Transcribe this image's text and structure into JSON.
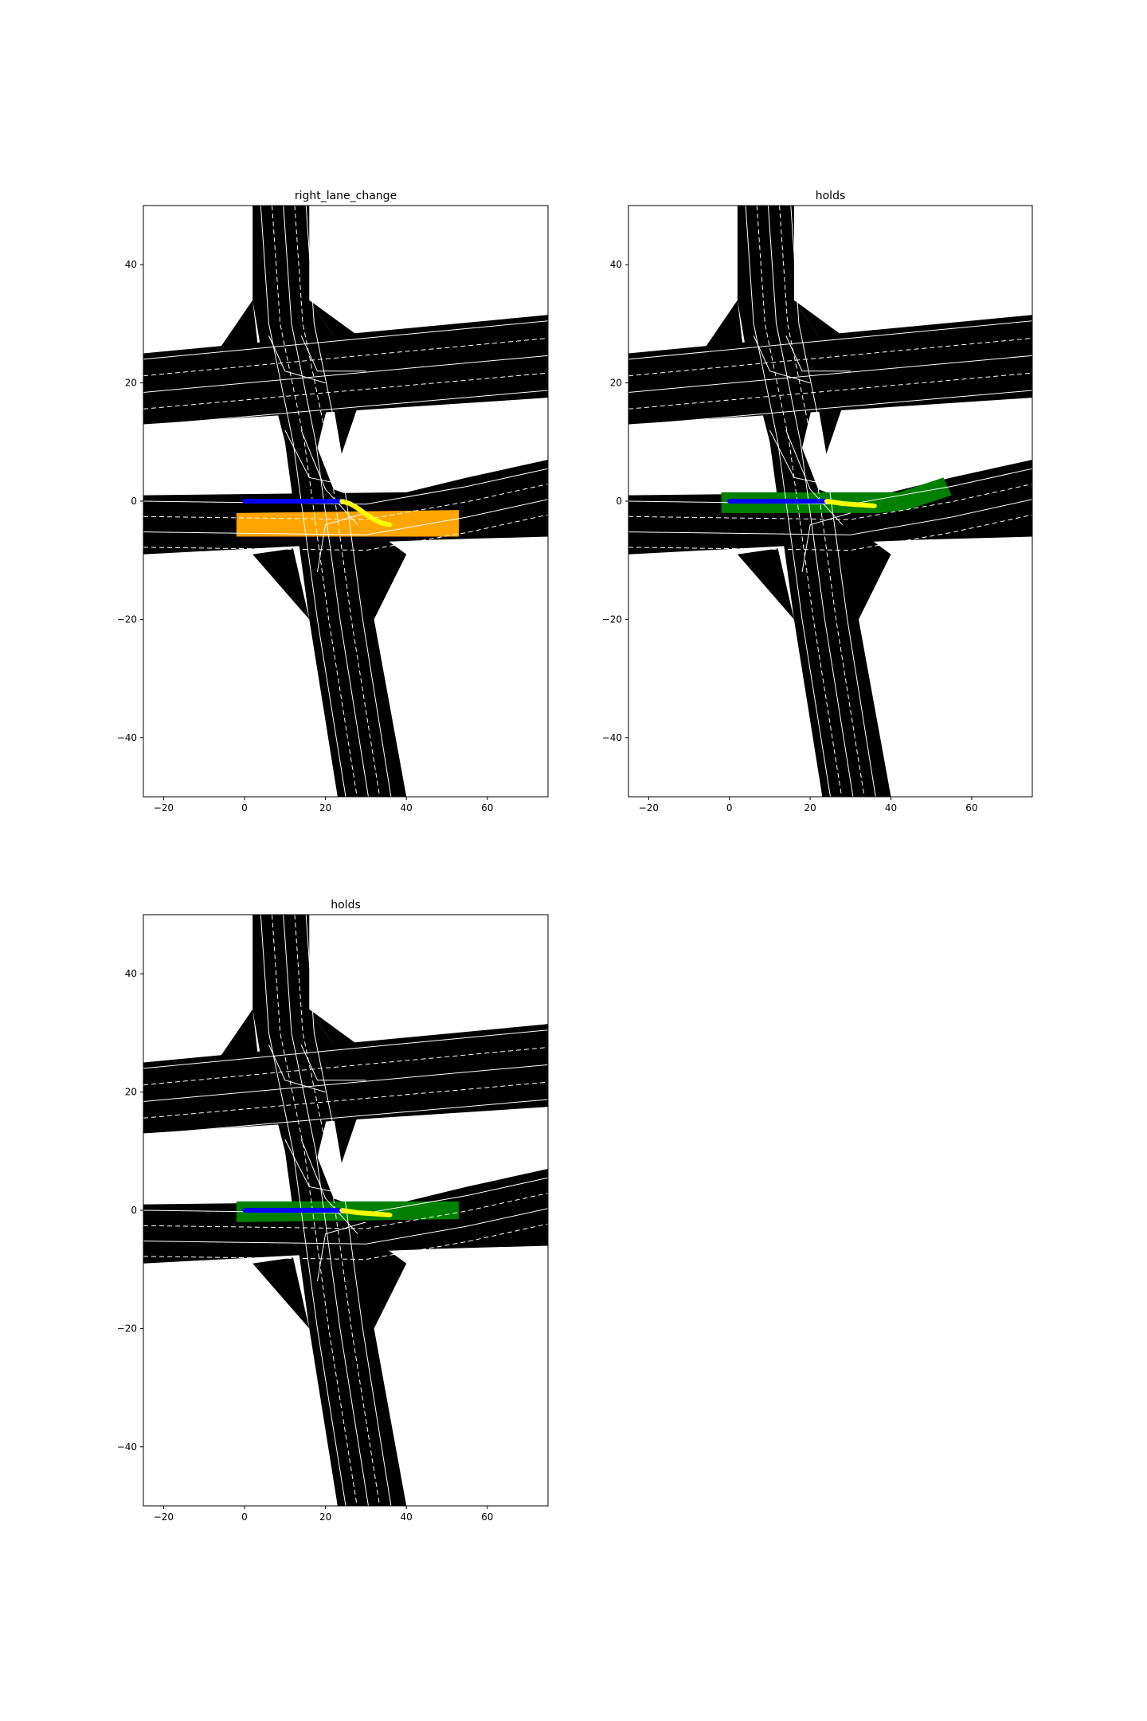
{
  "figure": {
    "panel_count": 3,
    "colors": {
      "road": "#000000",
      "lane_line": "#ffffff",
      "highlight_orange": "#ffa500",
      "highlight_green": "#008000",
      "history_track": "#0000ff",
      "future_track": "#ffff00",
      "axes_frame": "#000000"
    }
  },
  "chart_data": [
    {
      "type": "scatter",
      "title": "right_lane_change",
      "xlim": [
        -25,
        75
      ],
      "ylim": [
        -50,
        50
      ],
      "x_ticks": [
        -20,
        0,
        20,
        40,
        60
      ],
      "y_ticks": [
        -40,
        -20,
        0,
        20,
        40
      ],
      "x_tick_labels": [
        "−20",
        "0",
        "20",
        "40",
        "60"
      ],
      "y_tick_labels": [
        "−40",
        "−20",
        "0",
        "20",
        "40"
      ],
      "grid": false,
      "highlight": {
        "color": "orange",
        "lane": "right lane after change",
        "polygon": [
          [
            -2,
            -2
          ],
          [
            53,
            -1.5
          ],
          [
            53,
            -6
          ],
          [
            -2,
            -6
          ]
        ]
      },
      "series": [
        {
          "color": "blue",
          "x": [
            0,
            2,
            4,
            6,
            8,
            10,
            12,
            14,
            16,
            18,
            20,
            22,
            24
          ],
          "y": [
            0,
            0,
            0,
            0,
            0,
            0,
            0,
            0,
            0,
            0,
            0,
            0,
            0
          ]
        },
        {
          "color": "yellow",
          "x": [
            24,
            26,
            28,
            30,
            32,
            34,
            36
          ],
          "y": [
            0,
            -0.4,
            -1.2,
            -2.2,
            -3.1,
            -3.7,
            -4.0
          ]
        }
      ]
    },
    {
      "type": "scatter",
      "title": "holds",
      "xlim": [
        -25,
        75
      ],
      "ylim": [
        -50,
        50
      ],
      "x_ticks": [
        -20,
        0,
        20,
        40,
        60
      ],
      "y_ticks": [
        -40,
        -20,
        0,
        20,
        40
      ],
      "x_tick_labels": [
        "−20",
        "0",
        "20",
        "40",
        "60"
      ],
      "y_tick_labels": [
        "−40",
        "−20",
        "0",
        "20",
        "40"
      ],
      "grid": false,
      "highlight": {
        "color": "green",
        "lane": "current lane",
        "polygon": [
          [
            -2,
            1.5
          ],
          [
            42,
            1.5
          ],
          [
            53,
            4
          ],
          [
            55,
            1
          ],
          [
            44,
            -1.5
          ],
          [
            37,
            -2
          ],
          [
            -2,
            -2
          ]
        ]
      },
      "series": [
        {
          "color": "blue",
          "x": [
            0,
            2,
            4,
            6,
            8,
            10,
            12,
            14,
            16,
            18,
            20,
            22,
            24
          ],
          "y": [
            0,
            0,
            0,
            0,
            0,
            0,
            0,
            0,
            0,
            0,
            0,
            0,
            0
          ]
        },
        {
          "color": "yellow",
          "x": [
            24,
            26,
            28,
            30,
            32,
            34,
            36
          ],
          "y": [
            0,
            -0.2,
            -0.4,
            -0.5,
            -0.6,
            -0.7,
            -0.8
          ]
        }
      ]
    },
    {
      "type": "scatter",
      "title": "holds",
      "xlim": [
        -25,
        75
      ],
      "ylim": [
        -50,
        50
      ],
      "x_ticks": [
        -20,
        0,
        20,
        40,
        60
      ],
      "y_ticks": [
        -40,
        -20,
        0,
        20,
        40
      ],
      "x_tick_labels": [
        "−20",
        "0",
        "20",
        "40",
        "60"
      ],
      "y_tick_labels": [
        "−40",
        "−20",
        "0",
        "20",
        "40"
      ],
      "grid": false,
      "highlight": {
        "color": "green",
        "lane": "current lane",
        "polygon": [
          [
            -2,
            1.5
          ],
          [
            53,
            1.5
          ],
          [
            53,
            -1.5
          ],
          [
            -2,
            -2
          ]
        ]
      },
      "series": [
        {
          "color": "blue",
          "x": [
            0,
            2,
            4,
            6,
            8,
            10,
            12,
            14,
            16,
            18,
            20,
            22,
            24
          ],
          "y": [
            0,
            0,
            0,
            0,
            0,
            0,
            0,
            0,
            0,
            0,
            0,
            0,
            0
          ]
        },
        {
          "color": "yellow",
          "x": [
            24,
            26,
            28,
            30,
            32,
            34,
            36
          ],
          "y": [
            0,
            -0.2,
            -0.4,
            -0.5,
            -0.6,
            -0.7,
            -0.8
          ]
        }
      ]
    }
  ]
}
